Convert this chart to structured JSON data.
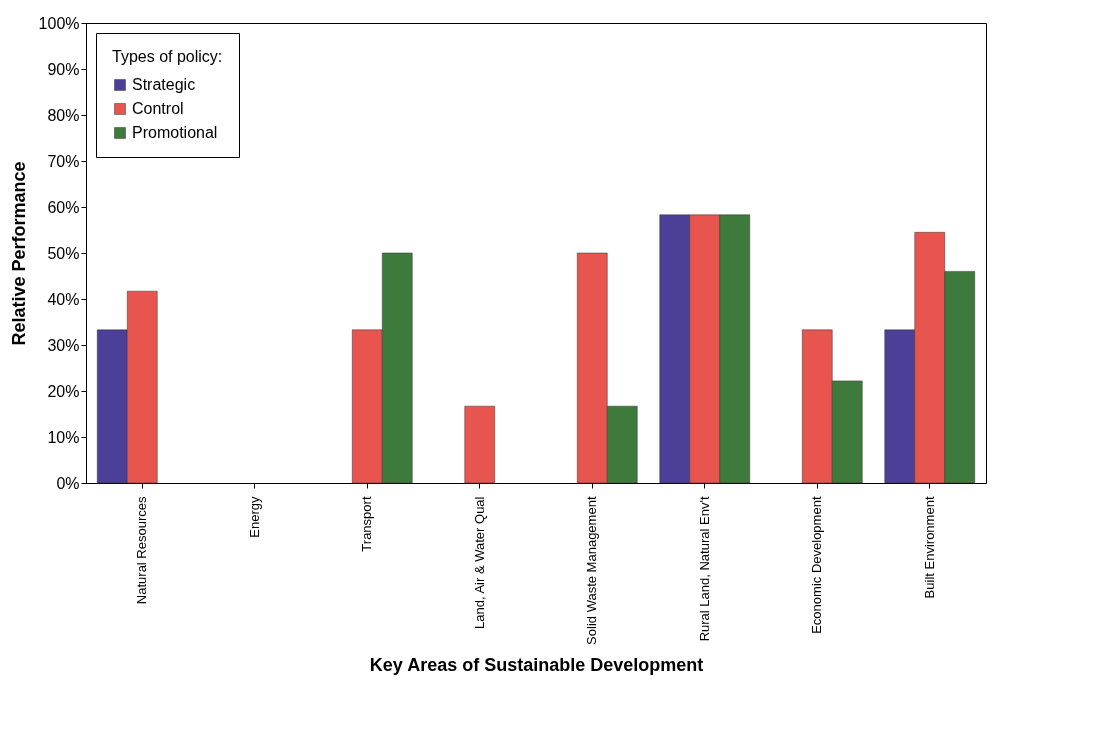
{
  "chart_data": {
    "type": "bar",
    "xlabel": "Key Areas of Sustainable Development",
    "ylabel": "Relative Performance",
    "categories": [
      "Natural Resources",
      "Energy",
      "Transport",
      "Land, Air & Water Qual",
      "Solid Waste Management",
      "Rural Land, Natural Env't",
      "Economic Development",
      "Built Environment"
    ],
    "series": [
      {
        "name": "Strategic",
        "color": "#4b3f98",
        "values": [
          33.3,
          null,
          null,
          null,
          null,
          58.3,
          null,
          33.3
        ]
      },
      {
        "name": "Control",
        "color": "#e8554e",
        "values": [
          41.7,
          null,
          33.3,
          16.7,
          50,
          58.3,
          33.3,
          54.5
        ]
      },
      {
        "name": "Promotional",
        "color": "#3e7a3c",
        "values": [
          null,
          null,
          50,
          null,
          16.7,
          58.3,
          22.2,
          46
        ]
      }
    ],
    "legend_title": "Types of policy:",
    "legend": "top left",
    "grid": false,
    "ylim": [
      0,
      100
    ],
    "yticks": [
      {
        "value": 0,
        "label": "0%"
      },
      {
        "value": 10,
        "label": "10%"
      },
      {
        "value": 20,
        "label": "20%"
      },
      {
        "value": 30,
        "label": "30%"
      },
      {
        "value": 40,
        "label": "40%"
      },
      {
        "value": 50,
        "label": "50%"
      },
      {
        "value": 60,
        "label": "60%"
      },
      {
        "value": 70,
        "label": "70%"
      },
      {
        "value": 80,
        "label": "80%"
      },
      {
        "value": 90,
        "label": "90%"
      },
      {
        "value": 100,
        "label": "100%"
      }
    ]
  }
}
